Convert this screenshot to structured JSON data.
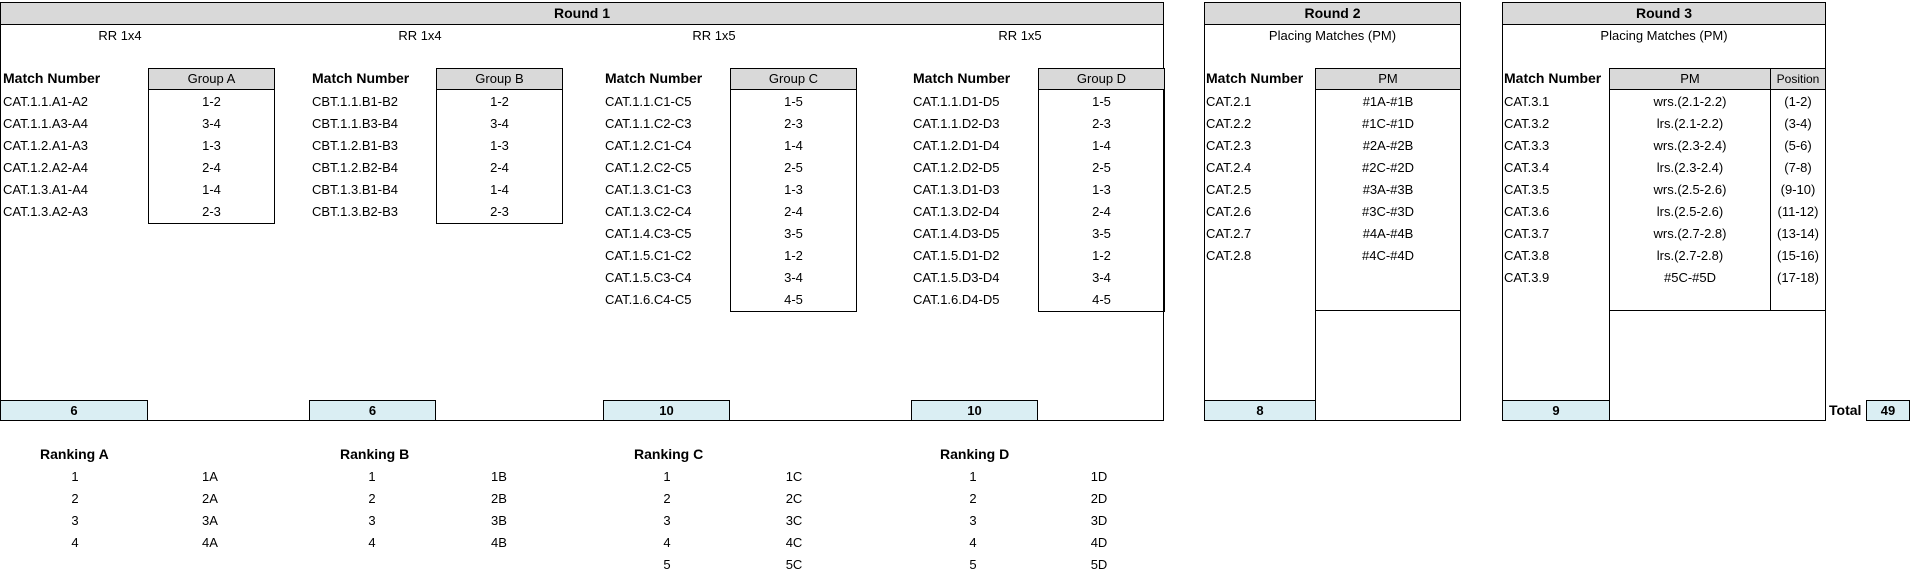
{
  "round1": {
    "title": "Round 1",
    "groups": [
      {
        "format": "RR 1x4",
        "match_header": "Match Number",
        "group_header": "Group A",
        "matches": [
          "CAT.1.1.A1-A2",
          "CAT.1.1.A3-A4",
          "CAT.1.2.A1-A3",
          "CAT.1.2.A2-A4",
          "CAT.1.3.A1-A4",
          "CAT.1.3.A2-A3"
        ],
        "pairs": [
          "1-2",
          "3-4",
          "1-3",
          "2-4",
          "1-4",
          "2-3"
        ],
        "total": "6"
      },
      {
        "format": "RR 1x4",
        "match_header": "Match Number",
        "group_header": "Group B",
        "matches": [
          "CBT.1.1.B1-B2",
          "CBT.1.1.B3-B4",
          "CBT.1.2.B1-B3",
          "CBT.1.2.B2-B4",
          "CBT.1.3.B1-B4",
          "CBT.1.3.B2-B3"
        ],
        "pairs": [
          "1-2",
          "3-4",
          "1-3",
          "2-4",
          "1-4",
          "2-3"
        ],
        "total": "6"
      },
      {
        "format": "RR 1x5",
        "match_header": "Match Number",
        "group_header": "Group C",
        "matches": [
          "CAT.1.1.C1-C5",
          "CAT.1.1.C2-C3",
          "CAT.1.2.C1-C4",
          "CAT.1.2.C2-C5",
          "CAT.1.3.C1-C3",
          "CAT.1.3.C2-C4",
          "CAT.1.4.C3-C5",
          "CAT.1.5.C1-C2",
          "CAT.1.5.C3-C4",
          "CAT.1.6.C4-C5"
        ],
        "pairs": [
          "1-5",
          "2-3",
          "1-4",
          "2-5",
          "1-3",
          "2-4",
          "3-5",
          "1-2",
          "3-4",
          "4-5"
        ],
        "total": "10"
      },
      {
        "format": "RR 1x5",
        "match_header": "Match Number",
        "group_header": "Group D",
        "matches": [
          "CAT.1.1.D1-D5",
          "CAT.1.1.D2-D3",
          "CAT.1.2.D1-D4",
          "CAT.1.2.D2-D5",
          "CAT.1.3.D1-D3",
          "CAT.1.3.D2-D4",
          "CAT.1.4.D3-D5",
          "CAT.1.5.D1-D2",
          "CAT.1.5.D3-D4",
          "CAT.1.6.D4-D5"
        ],
        "pairs": [
          "1-5",
          "2-3",
          "1-4",
          "2-5",
          "1-3",
          "2-4",
          "3-5",
          "1-2",
          "3-4",
          "4-5"
        ],
        "total": "10"
      }
    ]
  },
  "round2": {
    "title": "Round 2",
    "subtitle": "Placing Matches (PM)",
    "match_header": "Match Number",
    "pm_header": "PM",
    "matches": [
      "CAT.2.1",
      "CAT.2.2",
      "CAT.2.3",
      "CAT.2.4",
      "CAT.2.5",
      "CAT.2.6",
      "CAT.2.7",
      "CAT.2.8"
    ],
    "pm": [
      "#1A-#1B",
      "#1C-#1D",
      "#2A-#2B",
      "#2C-#2D",
      "#3A-#3B",
      "#3C-#3D",
      "#4A-#4B",
      "#4C-#4D"
    ],
    "total": "8"
  },
  "round3": {
    "title": "Round 3",
    "subtitle": "Placing Matches (PM)",
    "match_header": "Match Number",
    "pm_header": "PM",
    "position_header": "Position",
    "matches": [
      "CAT.3.1",
      "CAT.3.2",
      "CAT.3.3",
      "CAT.3.4",
      "CAT.3.5",
      "CAT.3.6",
      "CAT.3.7",
      "CAT.3.8",
      "CAT.3.9"
    ],
    "pm": [
      "wrs.(2.1-2.2)",
      "lrs.(2.1-2.2)",
      "wrs.(2.3-2.4)",
      "lrs.(2.3-2.4)",
      "wrs.(2.5-2.6)",
      "lrs.(2.5-2.6)",
      "wrs.(2.7-2.8)",
      "lrs.(2.7-2.8)",
      "#5C-#5D"
    ],
    "positions": [
      "(1-2)",
      "(3-4)",
      "(5-6)",
      "(7-8)",
      "(9-10)",
      "(11-12)",
      "(13-14)",
      "(15-16)",
      "(17-18)"
    ],
    "total": "9"
  },
  "grand_total": {
    "label": "Total",
    "value": "49"
  },
  "rankings": [
    {
      "title": "Ranking A",
      "ranks": [
        "1",
        "2",
        "3",
        "4"
      ],
      "seeds": [
        "1A",
        "2A",
        "3A",
        "4A"
      ]
    },
    {
      "title": "Ranking B",
      "ranks": [
        "1",
        "2",
        "3",
        "4"
      ],
      "seeds": [
        "1B",
        "2B",
        "3B",
        "4B"
      ]
    },
    {
      "title": "Ranking C",
      "ranks": [
        "1",
        "2",
        "3",
        "4",
        "5"
      ],
      "seeds": [
        "1C",
        "2C",
        "3C",
        "4C",
        "5C"
      ]
    },
    {
      "title": "Ranking D",
      "ranks": [
        "1",
        "2",
        "3",
        "4",
        "5"
      ],
      "seeds": [
        "1D",
        "2D",
        "3D",
        "4D",
        "5D"
      ]
    }
  ]
}
